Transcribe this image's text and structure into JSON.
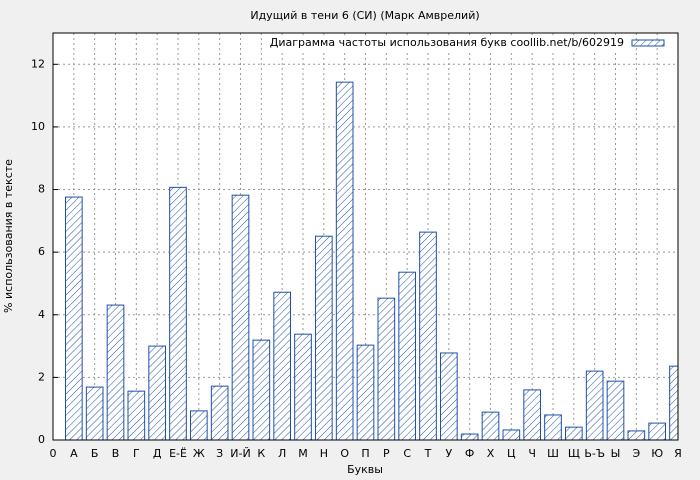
{
  "chart_data": {
    "type": "bar",
    "title": "Идущий в тени 6 (СИ) (Марк Амврелий)",
    "xlabel": "Буквы",
    "ylabel": "% использования в тексте",
    "xlim": [
      0,
      30
    ],
    "xticks": [
      0,
      {
        "value": 1,
        "label": "А"
      },
      {
        "value": 2,
        "label": "Б"
      },
      {
        "value": 3,
        "label": "В"
      },
      {
        "value": 4,
        "label": "Г"
      },
      {
        "value": 5,
        "label": "Д"
      },
      {
        "value": 6,
        "label": "Е-Ё"
      },
      {
        "value": 7,
        "label": "Ж"
      },
      {
        "value": 8,
        "label": "З"
      },
      {
        "value": 9,
        "label": "И-Й"
      },
      {
        "value": 10,
        "label": "К"
      },
      {
        "value": 11,
        "label": "Л"
      },
      {
        "value": 12,
        "label": "М"
      },
      {
        "value": 13,
        "label": "Н"
      },
      {
        "value": 14,
        "label": "О"
      },
      {
        "value": 15,
        "label": "П"
      },
      {
        "value": 16,
        "label": "Р"
      },
      {
        "value": 17,
        "label": "С"
      },
      {
        "value": 18,
        "label": "Т"
      },
      {
        "value": 19,
        "label": "У"
      },
      {
        "value": 20,
        "label": "Ф"
      },
      {
        "value": 21,
        "label": "Х"
      },
      {
        "value": 22,
        "label": "Ц"
      },
      {
        "value": 23,
        "label": "Ч"
      },
      {
        "value": 24,
        "label": "Ш"
      },
      {
        "value": 25,
        "label": "Щ"
      },
      {
        "value": 26,
        "label": "Ь-Ъ"
      },
      {
        "value": 27,
        "label": "Ы"
      },
      {
        "value": 28,
        "label": "Э"
      },
      {
        "value": 29,
        "label": "Ю"
      },
      {
        "value": 30,
        "label": "Я"
      }
    ],
    "ylim": [
      0,
      13
    ],
    "yticks": [
      0,
      2,
      4,
      6,
      8,
      10,
      12
    ],
    "grid": true,
    "legend": "top-right",
    "series": [
      {
        "name": "Диаграмма частоты использования букв coollib.net/b/602919",
        "color": "#1f4fa8",
        "x": [
          1,
          2,
          3,
          4,
          5,
          6,
          7,
          8,
          9,
          10,
          11,
          12,
          13,
          14,
          15,
          16,
          17,
          18,
          19,
          20,
          21,
          22,
          23,
          24,
          25,
          26,
          27,
          28,
          29,
          30
        ],
        "values": [
          7.76,
          1.69,
          4.31,
          1.56,
          3.0,
          8.07,
          0.93,
          1.72,
          7.82,
          3.19,
          4.72,
          3.38,
          6.51,
          11.43,
          3.03,
          4.53,
          5.36,
          6.64,
          2.78,
          0.19,
          0.89,
          0.32,
          1.6,
          0.8,
          0.41,
          2.2,
          1.88,
          0.29,
          0.54,
          2.36
        ]
      }
    ]
  }
}
